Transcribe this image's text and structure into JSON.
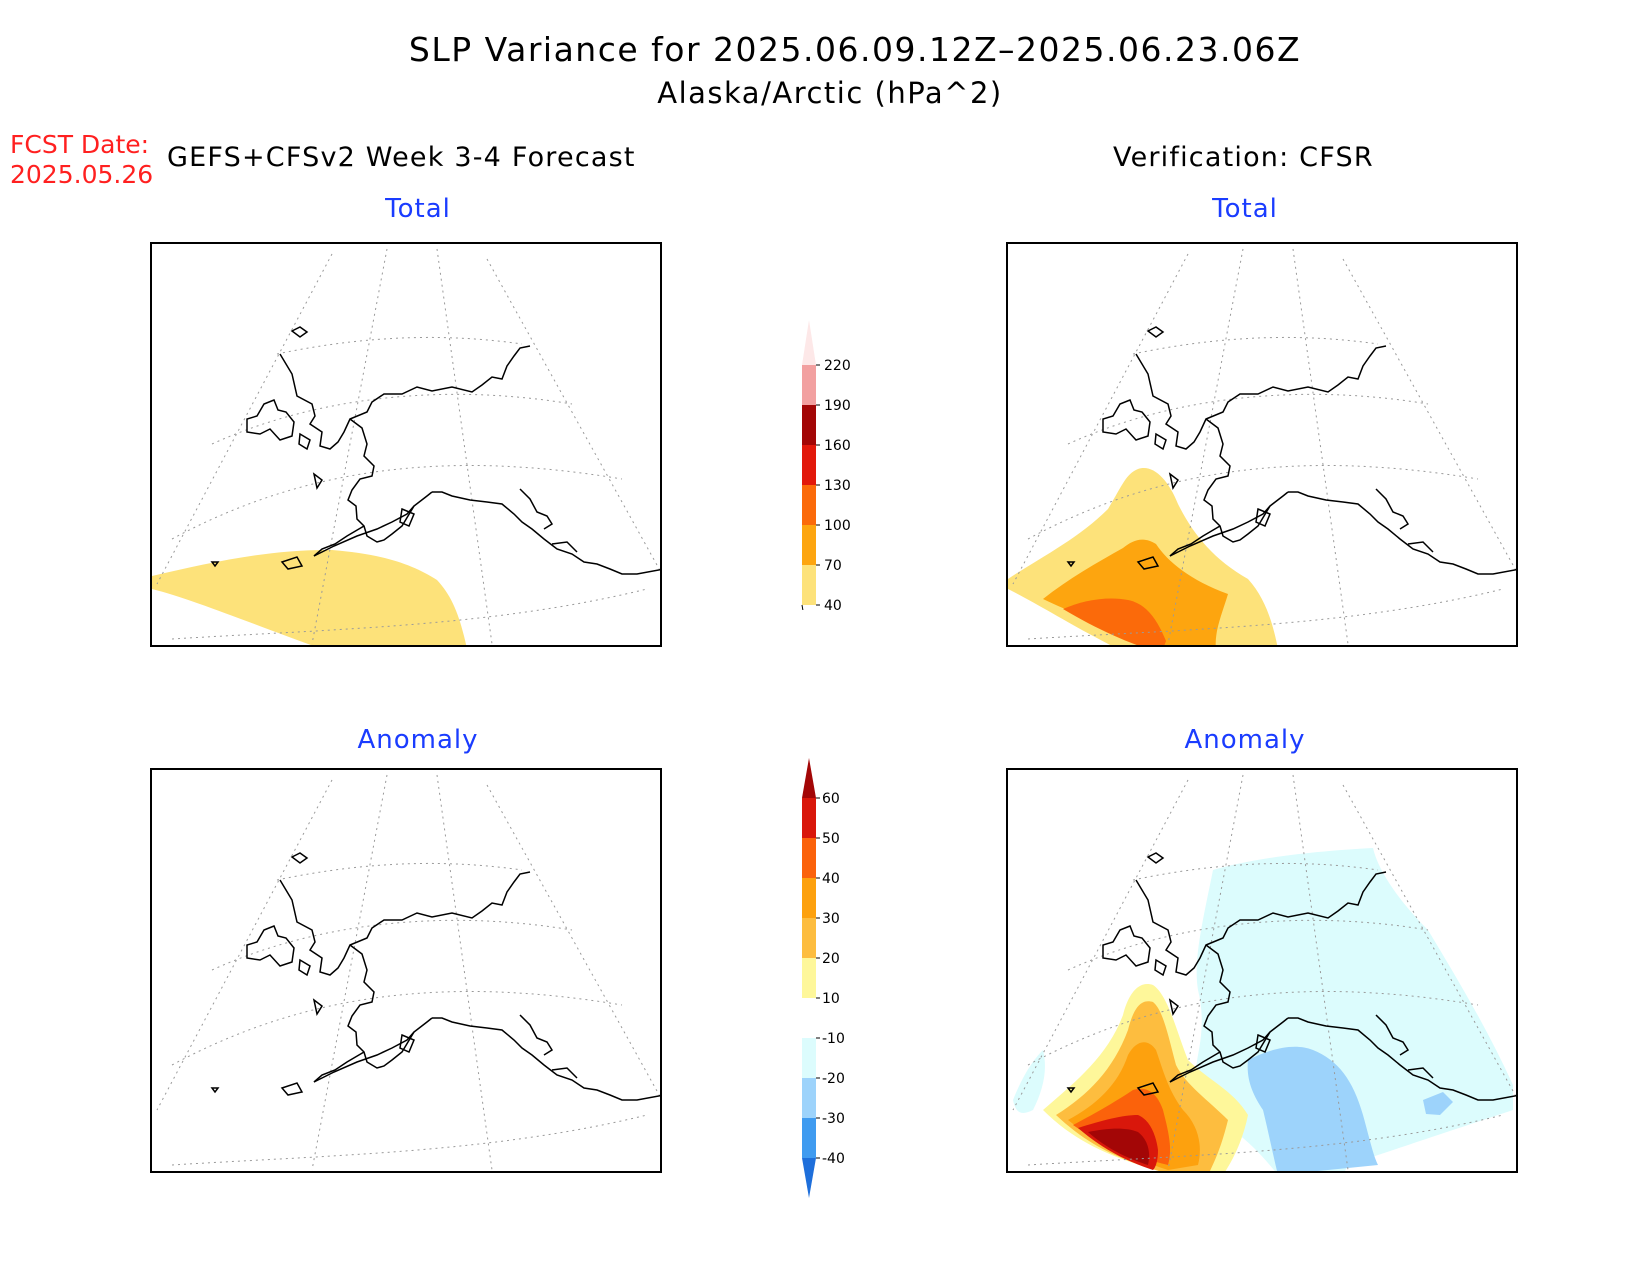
{
  "title": {
    "line1": "SLP Variance for 2025.06.09.12Z–2025.06.23.06Z",
    "line2": "Alaska/Arctic (hPa^2)"
  },
  "fcst_date": {
    "label": "FCST Date:",
    "value": "2025.05.26"
  },
  "left_header": "GEFS+CFSv2 Week 3-4 Forecast",
  "right_header": "Verification: CFSR",
  "panels": {
    "forecast_total": {
      "subtitle": "Total"
    },
    "verif_total": {
      "subtitle": "Total"
    },
    "forecast_anomaly": {
      "subtitle": "Anomaly"
    },
    "verif_anomaly": {
      "subtitle": "Anomaly"
    }
  },
  "colorbar_total": {
    "levels": [
      "40",
      "70",
      "100",
      "130",
      "160",
      "190",
      "220"
    ],
    "colors": [
      "#fde27a",
      "#fda50f",
      "#fb6a0a",
      "#e2180b",
      "#a30606",
      "#f2a0a0",
      "#fde8e8"
    ]
  },
  "colorbar_anomaly": {
    "levels": [
      "-40",
      "-30",
      "-20",
      "-10",
      "10",
      "20",
      "30",
      "40",
      "50",
      "60"
    ],
    "colors": [
      "#1e6fdb",
      "#3f9bf0",
      "#9dd3fb",
      "#dcfcfd",
      "#ffffff",
      "#fef79a",
      "#fdbd3f",
      "#fda10e",
      "#fb620b",
      "#d9170b",
      "#a30606"
    ]
  }
}
